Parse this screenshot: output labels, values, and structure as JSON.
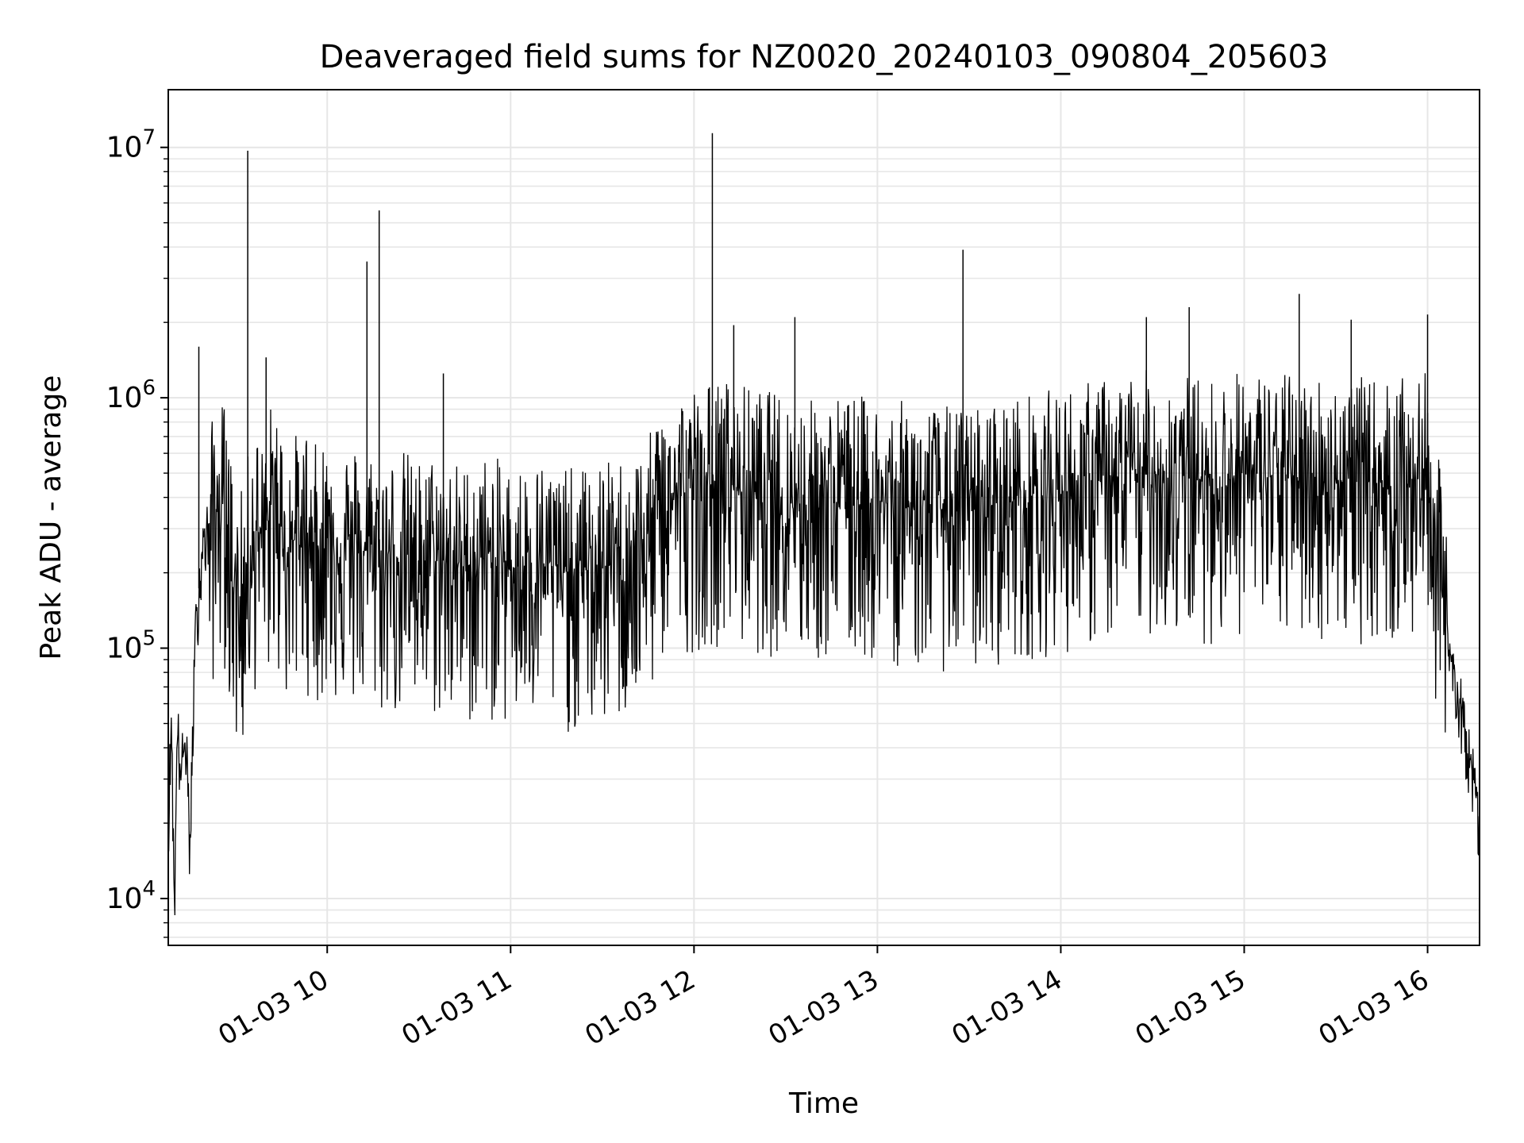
{
  "chart_data": {
    "type": "line",
    "title": "Deaveraged field sums for NZ0020_20240103_090804_205603",
    "xlabel": "Time",
    "ylabel": "Peak ADU - average",
    "yscale": "log",
    "grid": true,
    "legend": "none",
    "line_color": "#000000",
    "grid_color": "#e6e6e6",
    "xlim": [
      "2024-01-03 09:08",
      "2024-01-03 16:17"
    ],
    "ylim": [
      6500,
      17000000
    ],
    "x_ticks": [
      "01-03 10",
      "01-03 11",
      "01-03 12",
      "01-03 13",
      "01-03 14",
      "01-03 15",
      "01-03 16"
    ],
    "x_tick_values": [
      "2024-01-03 10:00",
      "2024-01-03 11:00",
      "2024-01-03 12:00",
      "2024-01-03 13:00",
      "2024-01-03 14:00",
      "2024-01-03 15:00",
      "2024-01-03 16:00"
    ],
    "y_ticks": [
      {
        "value": 10000,
        "base": "10",
        "exp": "4"
      },
      {
        "value": 100000,
        "base": "10",
        "exp": "5"
      },
      {
        "value": 1000000,
        "base": "10",
        "exp": "6"
      },
      {
        "value": 10000000,
        "base": "10",
        "exp": "7"
      }
    ],
    "series": [
      {
        "x": [
          "2024-01-03 09:08",
          "2024-01-03 09:09",
          "2024-01-03 09:10",
          "2024-01-03 09:11",
          "2024-01-03 09:12",
          "2024-01-03 09:13",
          "2024-01-03 09:14",
          "2024-01-03 09:15",
          "2024-01-03 09:16",
          "2024-01-03 09:17",
          "2024-01-03 09:19",
          "2024-01-03 09:21",
          "2024-01-03 09:23",
          "2024-01-03 09:25",
          "2024-01-03 09:27",
          "2024-01-03 09:29",
          "2024-01-03 09:31",
          "2024-01-03 09:33",
          "2024-01-03 09:35",
          "2024-01-03 09:37",
          "2024-01-03 09:39",
          "2024-01-03 09:41",
          "2024-01-03 09:43",
          "2024-01-03 09:45",
          "2024-01-03 09:47",
          "2024-01-03 09:50",
          "2024-01-03 09:53",
          "2024-01-03 09:56",
          "2024-01-03 10:00",
          "2024-01-03 10:05",
          "2024-01-03 10:10",
          "2024-01-03 10:15",
          "2024-01-03 10:20",
          "2024-01-03 10:25",
          "2024-01-03 10:30",
          "2024-01-03 10:35",
          "2024-01-03 10:40",
          "2024-01-03 10:45",
          "2024-01-03 10:50",
          "2024-01-03 10:55",
          "2024-01-03 11:00",
          "2024-01-03 11:10",
          "2024-01-03 11:20",
          "2024-01-03 11:30",
          "2024-01-03 11:40",
          "2024-01-03 11:45",
          "2024-01-03 11:50",
          "2024-01-03 12:00",
          "2024-01-03 12:10",
          "2024-01-03 12:20",
          "2024-01-03 12:30",
          "2024-01-03 12:40",
          "2024-01-03 12:50",
          "2024-01-03 13:00",
          "2024-01-03 13:10",
          "2024-01-03 13:20",
          "2024-01-03 13:30",
          "2024-01-03 13:40",
          "2024-01-03 13:50",
          "2024-01-03 14:00",
          "2024-01-03 14:10",
          "2024-01-03 14:20",
          "2024-01-03 14:30",
          "2024-01-03 14:40",
          "2024-01-03 14:50",
          "2024-01-03 15:00",
          "2024-01-03 15:10",
          "2024-01-03 15:20",
          "2024-01-03 15:30",
          "2024-01-03 15:40",
          "2024-01-03 15:50",
          "2024-01-03 16:00",
          "2024-01-03 16:03",
          "2024-01-03 16:06",
          "2024-01-03 16:09",
          "2024-01-03 16:12",
          "2024-01-03 16:15",
          "2024-01-03 16:17"
        ],
        "y": [
          20000,
          55000,
          9500,
          50000,
          32000,
          38000,
          45000,
          14000,
          48000,
          120000,
          250000,
          300000,
          320000,
          400000,
          350000,
          200000,
          150000,
          180000,
          280000,
          300000,
          250000,
          350000,
          400000,
          300000,
          250000,
          280000,
          300000,
          250000,
          280000,
          260000,
          250000,
          240000,
          230000,
          240000,
          220000,
          230000,
          220000,
          210000,
          230000,
          220000,
          210000,
          220000,
          200000,
          210000,
          230000,
          260000,
          400000,
          430000,
          460000,
          420000,
          400000,
          380000,
          400000,
          380000,
          370000,
          360000,
          350000,
          380000,
          400000,
          420000,
          450000,
          470000,
          500000,
          480000,
          460000,
          500000,
          480000,
          480000,
          470000,
          460000,
          450000,
          480000,
          260000,
          120000,
          75000,
          50000,
          30000,
          20000
        ],
        "spikes": [
          {
            "x": "2024-01-03 09:18",
            "y": 1600000
          },
          {
            "x": "2024-01-03 09:34",
            "y": 9700000
          },
          {
            "x": "2024-01-03 09:40",
            "y": 1450000
          },
          {
            "x": "2024-01-03 10:13",
            "y": 3500000
          },
          {
            "x": "2024-01-03 10:17",
            "y": 5600000
          },
          {
            "x": "2024-01-03 10:38",
            "y": 1250000
          },
          {
            "x": "2024-01-03 12:06",
            "y": 11400000
          },
          {
            "x": "2024-01-03 12:13",
            "y": 1950000
          },
          {
            "x": "2024-01-03 12:33",
            "y": 2100000
          },
          {
            "x": "2024-01-03 13:28",
            "y": 3900000
          },
          {
            "x": "2024-01-03 14:28",
            "y": 2100000
          },
          {
            "x": "2024-01-03 14:42",
            "y": 2300000
          },
          {
            "x": "2024-01-03 15:18",
            "y": 2600000
          },
          {
            "x": "2024-01-03 15:35",
            "y": 2050000
          },
          {
            "x": "2024-01-03 16:00",
            "y": 2150000
          }
        ]
      }
    ]
  }
}
